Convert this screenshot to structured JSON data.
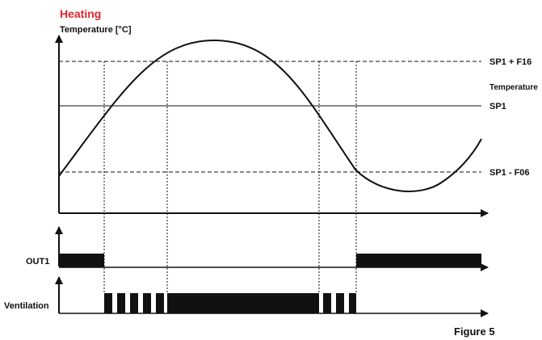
{
  "header": {
    "mode_title": "Heating",
    "y_axis_label": "Temperature [°C]"
  },
  "levels": {
    "upper": "SP1 + F16",
    "setpoint": "SP1",
    "lower": "SP1 - F06"
  },
  "curve_label": "Temperature",
  "signals": {
    "out1": "OUT1",
    "ventilation": "Ventilation"
  },
  "caption": "Figure 5",
  "colors": {
    "title": "#e0242b",
    "line": "#111111"
  }
}
